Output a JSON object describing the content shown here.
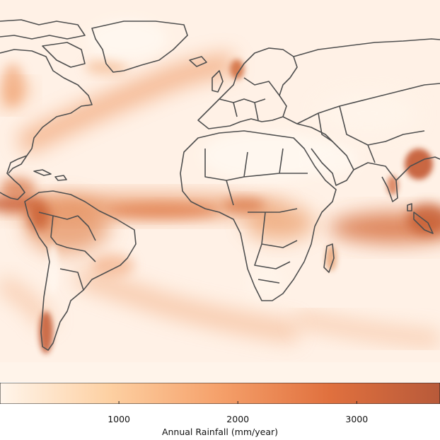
{
  "map": {
    "land_outline_color": "#4f4f4f",
    "ocean_base_color": "#fff1e6",
    "colorbar": {
      "label": "Annual Rainfall (mm/year)",
      "min": 0,
      "max": 3700,
      "ticks": [
        {
          "value": 1000,
          "label": "1000"
        },
        {
          "value": 2000,
          "label": "2000"
        },
        {
          "value": 3000,
          "label": "3000"
        }
      ],
      "colors": [
        "#fff5eb",
        "#fdd0a2",
        "#f5a06a",
        "#e0703e",
        "#b85a3a"
      ]
    },
    "regions": [
      {
        "name": "Intertropical Convergence Zone Pacific",
        "level": 2600
      },
      {
        "name": "Amazon basin",
        "level": 2400
      },
      {
        "name": "Maritime Continent / Indian Ocean",
        "level": 3000
      },
      {
        "name": "Gulf Stream North Atlantic",
        "level": 1500
      },
      {
        "name": "Southern Chile coast",
        "level": 3200
      },
      {
        "name": "Congo basin",
        "level": 1800
      },
      {
        "name": "Bay of Bengal / NE India",
        "level": 3500
      },
      {
        "name": "Sahara",
        "level": 50
      }
    ]
  }
}
